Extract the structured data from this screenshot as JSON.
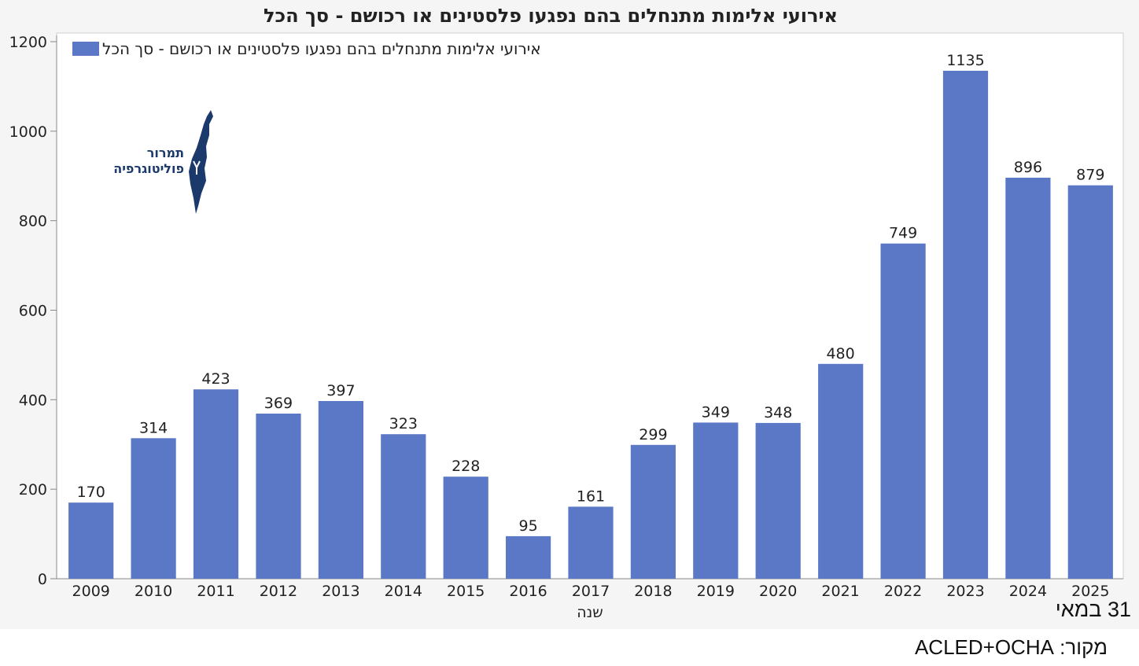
{
  "chart_data": {
    "type": "bar",
    "title": "אירועי אלימות מתנחלים בהם נפגעו פלסטינים או רכושם - סך הכל",
    "legend": [
      "אירועי אלימות מתנחלים בהם נפגעו פלסטינים או רכושם - סך הכל"
    ],
    "legend_position": "top-left",
    "xlabel": "שנה",
    "ylabel": "",
    "ylim": [
      0,
      1200
    ],
    "yticks": [
      0,
      200,
      400,
      600,
      800,
      1000,
      1200
    ],
    "grid": false,
    "categories": [
      "2009",
      "2010",
      "2011",
      "2012",
      "2013",
      "2014",
      "2015",
      "2016",
      "2017",
      "2018",
      "2019",
      "2020",
      "2021",
      "2022",
      "2023",
      "2024",
      "2025"
    ],
    "series": [
      {
        "name": "אירועי אלימות מתנחלים בהם נפגעו פלסטינים או רכושם - סך הכל",
        "values": [
          170,
          314,
          423,
          369,
          397,
          323,
          228,
          95,
          161,
          299,
          349,
          348,
          480,
          749,
          1135,
          896,
          879
        ]
      }
    ],
    "bar_color": "#5b78c6"
  },
  "logo": {
    "line1": "תמרור",
    "line2": "פוליטוגרפיה",
    "color": "#1b3a6b"
  },
  "notes": {
    "date": "31 במאי",
    "source": "מקור: ACLED+OCHA"
  }
}
